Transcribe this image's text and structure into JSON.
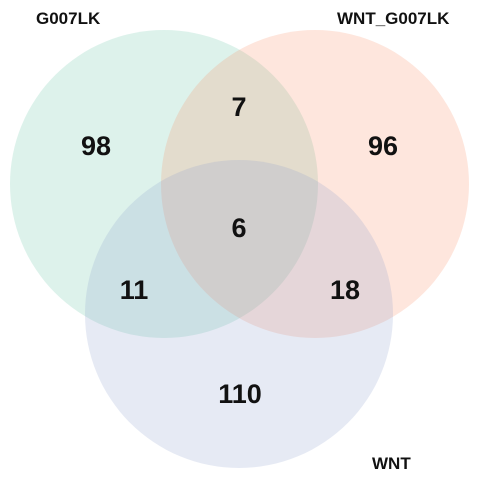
{
  "sets": [
    {
      "id": "A",
      "name": "G007LK",
      "color": "#66C2A5"
    },
    {
      "id": "B",
      "name": "WNT_G007LK",
      "color": "#FC8D62"
    },
    {
      "id": "C",
      "name": "WNT",
      "color": "#8DA0CB"
    }
  ],
  "regions": {
    "only_G007LK": "98",
    "only_WNT_G007LK": "96",
    "only_WNT": "110",
    "G007LK_and_WNT_G007LK": "7",
    "G007LK_and_WNT": "11",
    "WNT_G007LK_and_WNT": "18",
    "all_three": "6"
  }
}
